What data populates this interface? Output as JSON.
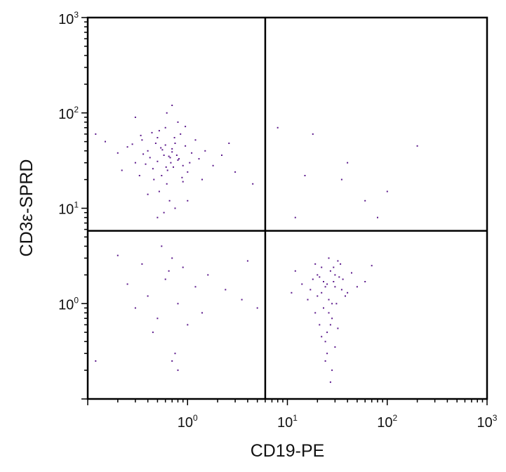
{
  "chart_data": {
    "type": "scatter",
    "title": "",
    "xlabel": "CD19-PE",
    "ylabel": "CD3ε-SPRD",
    "xscale": "log",
    "yscale": "log",
    "xlim": [
      0.1,
      1000
    ],
    "ylim": [
      0.1,
      1000
    ],
    "x_ticks": [
      {
        "value": 1,
        "base": "10",
        "exp": "0"
      },
      {
        "value": 10,
        "base": "10",
        "exp": "1"
      },
      {
        "value": 100,
        "base": "10",
        "exp": "2"
      },
      {
        "value": 1000,
        "base": "10",
        "exp": "3"
      }
    ],
    "y_ticks": [
      {
        "value": 1,
        "base": "10",
        "exp": "0"
      },
      {
        "value": 10,
        "base": "10",
        "exp": "1"
      },
      {
        "value": 100,
        "base": "10",
        "exp": "2"
      },
      {
        "value": 1000,
        "base": "10",
        "exp": "3"
      }
    ],
    "quadrant_gates": {
      "x": 6,
      "y": 5.8
    },
    "point_color": "#5c1a8c",
    "grid": false,
    "legend": "none",
    "series": [
      {
        "name": "",
        "points": [
          [
            0.65,
            35
          ],
          [
            0.4,
            40
          ],
          [
            0.9,
            28
          ],
          [
            0.55,
            22
          ],
          [
            0.75,
            48
          ],
          [
            0.3,
            30
          ],
          [
            1.1,
            38
          ],
          [
            0.5,
            55
          ],
          [
            0.62,
            18
          ],
          [
            0.8,
            32
          ],
          [
            0.45,
            26
          ],
          [
            0.7,
            42
          ],
          [
            0.35,
            52
          ],
          [
            1.0,
            24
          ],
          [
            0.58,
            36
          ],
          [
            0.68,
            30
          ],
          [
            0.25,
            44
          ],
          [
            1.3,
            33
          ],
          [
            0.52,
            15
          ],
          [
            0.85,
            60
          ],
          [
            0.6,
            70
          ],
          [
            0.42,
            34
          ],
          [
            0.95,
            45
          ],
          [
            0.33,
            22
          ],
          [
            0.72,
            27
          ],
          [
            1.5,
            40
          ],
          [
            0.48,
            48
          ],
          [
            0.66,
            12
          ],
          [
            0.2,
            38
          ],
          [
            0.9,
            19
          ],
          [
            0.56,
            41
          ],
          [
            0.78,
            36
          ],
          [
            0.38,
            29
          ],
          [
            1.2,
            52
          ],
          [
            0.63,
            25
          ],
          [
            0.44,
            62
          ],
          [
            0.82,
            33
          ],
          [
            0.28,
            47
          ],
          [
            0.7,
            39
          ],
          [
            1.8,
            28
          ],
          [
            0.15,
            50
          ],
          [
            0.5,
            31
          ],
          [
            0.6,
            46
          ],
          [
            0.88,
            21
          ],
          [
            0.36,
            37
          ],
          [
            1.05,
            30
          ],
          [
            0.74,
            55
          ],
          [
            0.46,
            20
          ],
          [
            0.54,
            43
          ],
          [
            0.67,
            34
          ],
          [
            2.2,
            36
          ],
          [
            0.3,
            90
          ],
          [
            0.62,
            100
          ],
          [
            0.8,
            80
          ],
          [
            0.4,
            14
          ],
          [
            0.58,
            9
          ],
          [
            1.0,
            12
          ],
          [
            0.5,
            8
          ],
          [
            0.75,
            10
          ],
          [
            0.22,
            25
          ],
          [
            0.12,
            60
          ],
          [
            3.0,
            24
          ],
          [
            4.5,
            18
          ],
          [
            2.6,
            48
          ],
          [
            0.7,
            120
          ],
          [
            1.4,
            20
          ],
          [
            0.52,
            65
          ],
          [
            0.34,
            58
          ],
          [
            0.95,
            72
          ],
          [
            0.61,
            27
          ],
          [
            25,
            1.6
          ],
          [
            20,
            1.2
          ],
          [
            30,
            2.0
          ],
          [
            28,
            1.0
          ],
          [
            22,
            2.4
          ],
          [
            35,
            1.4
          ],
          [
            18,
            1.8
          ],
          [
            26,
            0.8
          ],
          [
            32,
            2.8
          ],
          [
            24,
            1.5
          ],
          [
            21,
            0.6
          ],
          [
            29,
            1.7
          ],
          [
            40,
            1.3
          ],
          [
            16,
            1.1
          ],
          [
            27,
            2.2
          ],
          [
            23,
            0.9
          ],
          [
            33,
            1.9
          ],
          [
            19,
            2.6
          ],
          [
            38,
            1.2
          ],
          [
            25,
            0.5
          ],
          [
            30,
            1.5
          ],
          [
            14,
            1.6
          ],
          [
            26,
            3.0
          ],
          [
            22,
            1.3
          ],
          [
            44,
            2.1
          ],
          [
            28,
            0.7
          ],
          [
            20,
            2.0
          ],
          [
            31,
            1.0
          ],
          [
            24,
            0.4
          ],
          [
            36,
            1.8
          ],
          [
            17,
            1.4
          ],
          [
            27,
            0.6
          ],
          [
            29,
            2.4
          ],
          [
            23,
            1.7
          ],
          [
            50,
            1.5
          ],
          [
            12,
            2.2
          ],
          [
            25,
            0.3
          ],
          [
            34,
            2.6
          ],
          [
            21,
            1.9
          ],
          [
            26,
            1.1
          ],
          [
            28,
            0.2
          ],
          [
            24,
            0.25
          ],
          [
            30,
            0.35
          ],
          [
            22,
            0.45
          ],
          [
            32,
            0.55
          ],
          [
            27,
            0.15
          ],
          [
            19,
            0.8
          ],
          [
            60,
            1.7
          ],
          [
            70,
            2.5
          ],
          [
            11,
            1.3
          ],
          [
            0.6,
            1.8
          ],
          [
            0.4,
            1.2
          ],
          [
            0.9,
            2.4
          ],
          [
            0.3,
            0.9
          ],
          [
            1.2,
            1.5
          ],
          [
            0.7,
            3.0
          ],
          [
            0.5,
            0.7
          ],
          [
            1.6,
            2.0
          ],
          [
            0.8,
            1.0
          ],
          [
            0.35,
            2.6
          ],
          [
            2.4,
            1.4
          ],
          [
            0.55,
            4.0
          ],
          [
            0.25,
            1.6
          ],
          [
            1.0,
            0.6
          ],
          [
            0.65,
            2.2
          ],
          [
            0.45,
            0.5
          ],
          [
            1.4,
            0.8
          ],
          [
            0.75,
            0.3
          ],
          [
            0.2,
            3.2
          ],
          [
            3.5,
            1.1
          ],
          [
            15,
            22
          ],
          [
            40,
            30
          ],
          [
            60,
            12
          ],
          [
            100,
            15
          ],
          [
            200,
            45
          ],
          [
            8,
            70
          ],
          [
            18,
            60
          ],
          [
            12,
            8
          ],
          [
            35,
            20
          ],
          [
            80,
            8
          ],
          [
            0.12,
            0.25
          ],
          [
            0.7,
            0.25
          ],
          [
            0.8,
            0.2
          ],
          [
            5,
            0.9
          ],
          [
            4,
            2.8
          ]
        ]
      }
    ]
  }
}
